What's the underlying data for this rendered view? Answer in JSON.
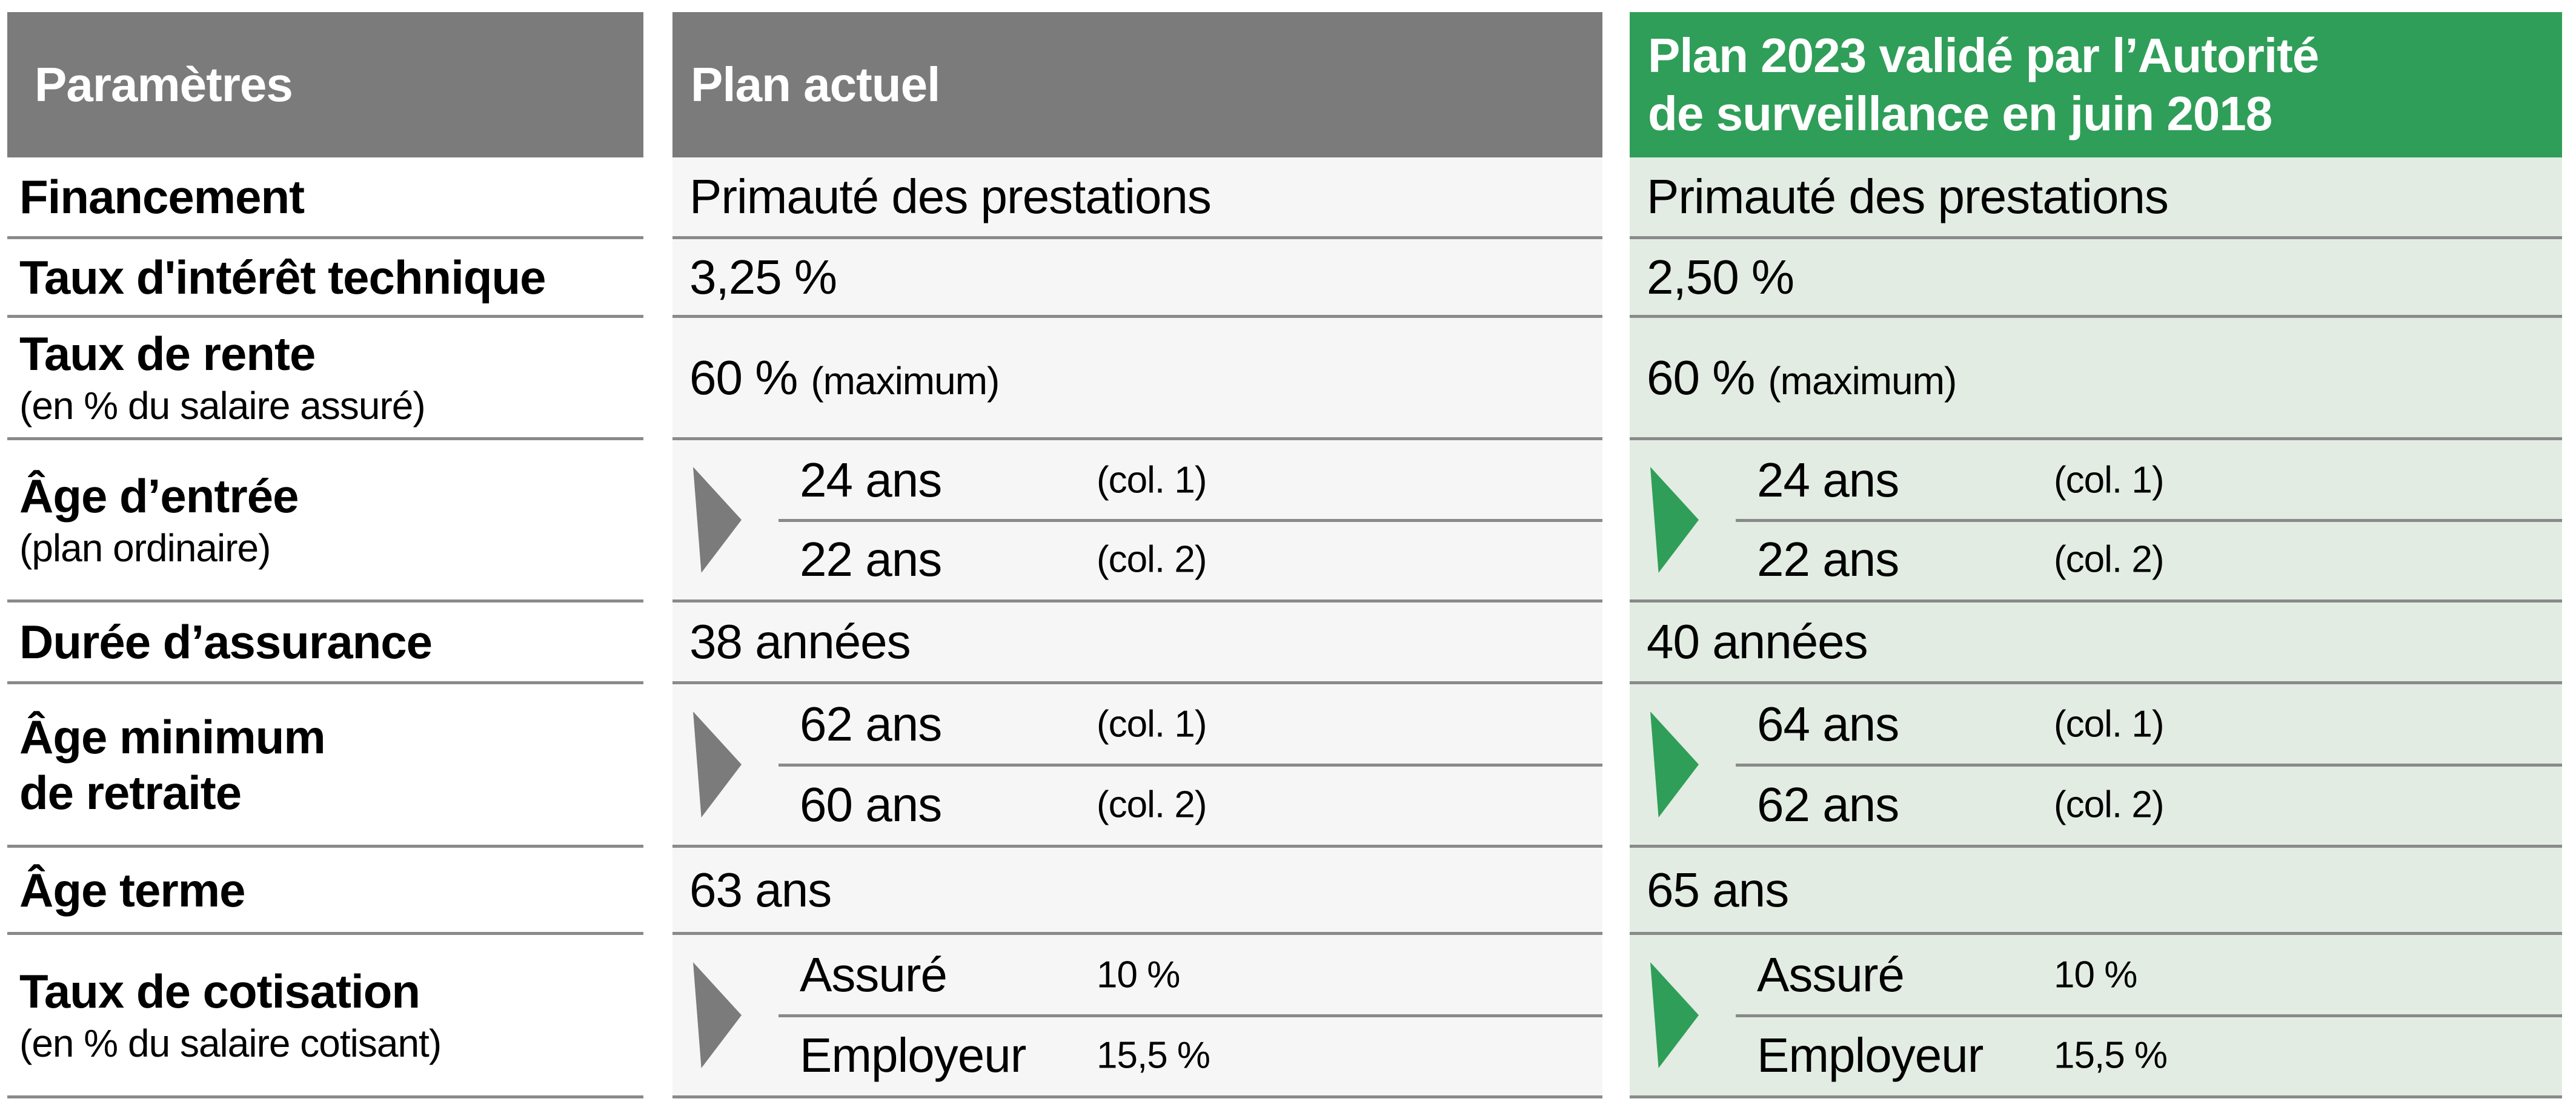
{
  "colors": {
    "header_gray": "#7b7b7b",
    "header_green": "#2f9e58",
    "body_gray": "#f6f6f6",
    "body_green": "#e2ece3",
    "separator": "#8a8a8a",
    "header_text": "#ffffff",
    "body_text": "#000000"
  },
  "table": {
    "columns": [
      {
        "header": "Paramètres"
      },
      {
        "header": "Plan actuel"
      },
      {
        "header": "Plan 2023 validé par l’Autorité\nde surveillance en juin 2018"
      }
    ],
    "rows": [
      {
        "param": {
          "title": "Financement"
        },
        "current": {
          "value": "Primauté des prestations"
        },
        "plan2023": {
          "value": "Primauté des prestations"
        }
      },
      {
        "param": {
          "title": "Taux d'intérêt technique"
        },
        "current": {
          "value": "3,25 %"
        },
        "plan2023": {
          "value": "2,50 %"
        }
      },
      {
        "param": {
          "title": "Taux de rente",
          "sub": "(en % du salaire assuré)"
        },
        "current": {
          "value": "60 %",
          "note": "(maximum)"
        },
        "plan2023": {
          "value": "60 %",
          "note": "(maximum)"
        }
      },
      {
        "param": {
          "title": "Âge d’entrée",
          "sub": "(plan ordinaire)"
        },
        "current": {
          "items": [
            {
              "value": "24 ans",
              "note": "(col. 1)"
            },
            {
              "value": "22 ans",
              "note": "(col. 2)"
            }
          ]
        },
        "plan2023": {
          "items": [
            {
              "value": "24 ans",
              "note": "(col. 1)"
            },
            {
              "value": "22 ans",
              "note": "(col. 2)"
            }
          ]
        }
      },
      {
        "param": {
          "title": "Durée d’assurance"
        },
        "current": {
          "value": "38 années"
        },
        "plan2023": {
          "value": "40 années"
        }
      },
      {
        "param": {
          "title": "Âge minimum\nde retraite"
        },
        "current": {
          "items": [
            {
              "value": "62 ans",
              "note": "(col. 1)"
            },
            {
              "value": "60 ans",
              "note": "(col. 2)"
            }
          ]
        },
        "plan2023": {
          "items": [
            {
              "value": "64 ans",
              "note": "(col. 1)"
            },
            {
              "value": "62 ans",
              "note": "(col. 2)"
            }
          ]
        }
      },
      {
        "param": {
          "title": "Âge terme"
        },
        "current": {
          "value": "63 ans"
        },
        "plan2023": {
          "value": "65 ans"
        }
      },
      {
        "param": {
          "title": "Taux de cotisation",
          "sub": "(en % du salaire cotisant)"
        },
        "current": {
          "items": [
            {
              "value": "Assuré",
              "note": "10 %"
            },
            {
              "value": "Employeur",
              "note": "15,5 %"
            }
          ]
        },
        "plan2023": {
          "items": [
            {
              "value": "Assuré",
              "note": "10 %"
            },
            {
              "value": "Employeur",
              "note": "15,5 %"
            }
          ]
        }
      }
    ]
  }
}
